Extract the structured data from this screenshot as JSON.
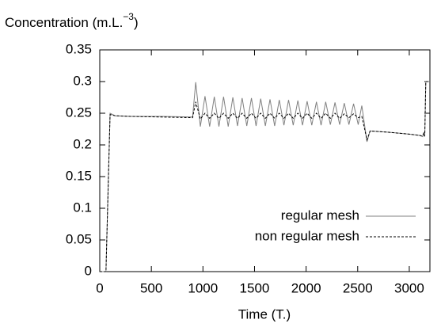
{
  "chart_data": {
    "type": "line",
    "ylabel": {
      "text": "Concentration (m.L.",
      "superscript": "−3",
      "suffix": ")"
    },
    "xlabel": "Time (T.)",
    "x": [
      0,
      60,
      100,
      150,
      300,
      600,
      900,
      930,
      975,
      1020,
      1065,
      1110,
      1155,
      1200,
      1245,
      1290,
      1335,
      1380,
      1425,
      1470,
      1515,
      1560,
      1605,
      1650,
      1695,
      1740,
      1785,
      1830,
      1875,
      1920,
      1965,
      2010,
      2055,
      2100,
      2145,
      2190,
      2235,
      2280,
      2325,
      2370,
      2415,
      2460,
      2505,
      2540,
      2590,
      2620,
      2800,
      3000,
      3100,
      3130,
      3140,
      3150,
      3160,
      3200
    ],
    "series": [
      {
        "name": "regular mesh",
        "color": "#808080",
        "dash": "none",
        "values": [
          0,
          0,
          0.25,
          0.246,
          0.245,
          0.245,
          0.244,
          0.299,
          0.229,
          0.277,
          0.229,
          0.276,
          0.229,
          0.276,
          0.229,
          0.275,
          0.23,
          0.274,
          0.23,
          0.274,
          0.23,
          0.273,
          0.23,
          0.272,
          0.23,
          0.271,
          0.231,
          0.271,
          0.231,
          0.27,
          0.231,
          0.269,
          0.231,
          0.268,
          0.231,
          0.268,
          0.232,
          0.267,
          0.232,
          0.266,
          0.232,
          0.265,
          0.232,
          0.262,
          0.205,
          0.222,
          0.22,
          0.217,
          0.215,
          0.213,
          0.22,
          0.213,
          0.3,
          0.3
        ]
      },
      {
        "name": "non regular mesh",
        "color": "#000000",
        "dash": "3,2",
        "values": [
          0,
          0,
          0.248,
          0.246,
          0.245,
          0.244,
          0.243,
          0.268,
          0.241,
          0.25,
          0.242,
          0.25,
          0.242,
          0.25,
          0.242,
          0.25,
          0.242,
          0.25,
          0.242,
          0.25,
          0.242,
          0.25,
          0.242,
          0.25,
          0.242,
          0.25,
          0.242,
          0.25,
          0.242,
          0.25,
          0.242,
          0.25,
          0.242,
          0.25,
          0.242,
          0.25,
          0.242,
          0.25,
          0.242,
          0.249,
          0.243,
          0.249,
          0.243,
          0.245,
          0.208,
          0.222,
          0.22,
          0.217,
          0.215,
          0.214,
          0.218,
          0.214,
          0.3,
          0.3
        ]
      }
    ],
    "xlim": [
      0,
      3200
    ],
    "xticks": [
      0,
      500,
      1000,
      1500,
      2000,
      2500,
      3000
    ],
    "ylim": [
      0,
      0.35
    ],
    "yticks": [
      0,
      0.05,
      0.1,
      0.15,
      0.2,
      0.25,
      0.3,
      0.35
    ],
    "legend": "bottom-right"
  }
}
